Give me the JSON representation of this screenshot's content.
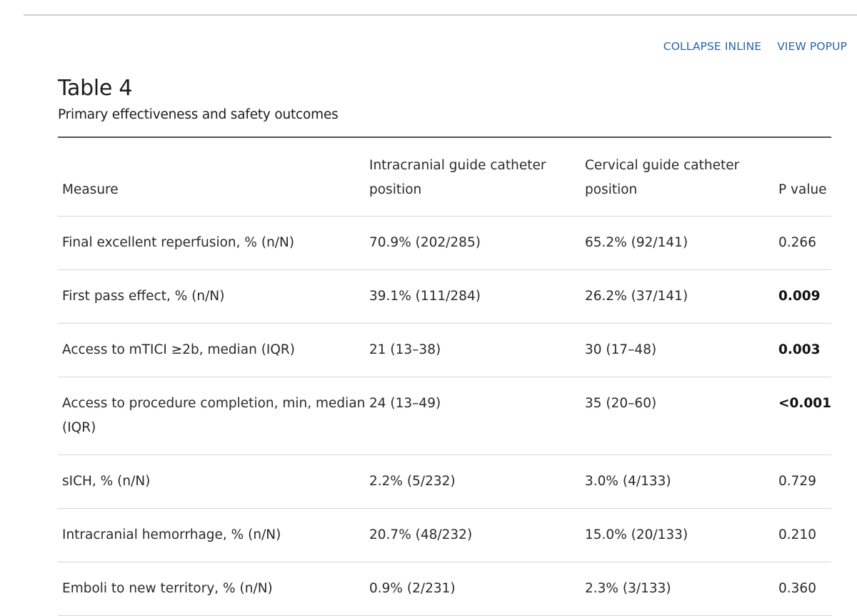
{
  "actions": {
    "collapse_inline": "COLLAPSE INLINE",
    "view_popup": "VIEW POPUP"
  },
  "caption": {
    "label": "Table 4",
    "title": "Primary effectiveness and safety outcomes"
  },
  "table": {
    "headers": [
      "Measure",
      "Intracranial guide catheter position",
      "Cervical guide catheter position",
      "P value"
    ],
    "rows": [
      {
        "measure": "Final excellent reperfusion, % (n/N)",
        "intracranial": "70.9% (202/285)",
        "cervical": "65.2% (92/141)",
        "p": "0.266",
        "significant": false
      },
      {
        "measure": "First pass effect, % (n/N)",
        "intracranial": "39.1% (111/284)",
        "cervical": "26.2% (37/141)",
        "p": "0.009",
        "significant": true
      },
      {
        "measure": "Access to mTICI ≥2b, median (IQR)",
        "intracranial": "21 (13–38)",
        "cervical": "30 (17–48)",
        "p": "0.003",
        "significant": true
      },
      {
        "measure": "Access to procedure completion, min, median (IQR)",
        "intracranial": "24 (13–49)",
        "cervical": "35 (20–60)",
        "p": "<0.001",
        "significant": true
      },
      {
        "measure": "sICH, % (n/N)",
        "intracranial": "2.2% (5/232)",
        "cervical": "3.0% (4/133)",
        "p": "0.729",
        "significant": false
      },
      {
        "measure": "Intracranial hemorrhage, % (n/N)",
        "intracranial": "20.7% (48/232)",
        "cervical": "15.0% (20/133)",
        "p": "0.210",
        "significant": false
      },
      {
        "measure": "Emboli to new territory, % (n/N)",
        "intracranial": "0.9% (2/231)",
        "cervical": "2.3% (3/133)",
        "p": "0.360",
        "significant": false
      }
    ]
  },
  "colors": {
    "link": "#2a66ae",
    "text": "#222222",
    "rule": "#555555",
    "row_border": "#d7d7d7"
  }
}
